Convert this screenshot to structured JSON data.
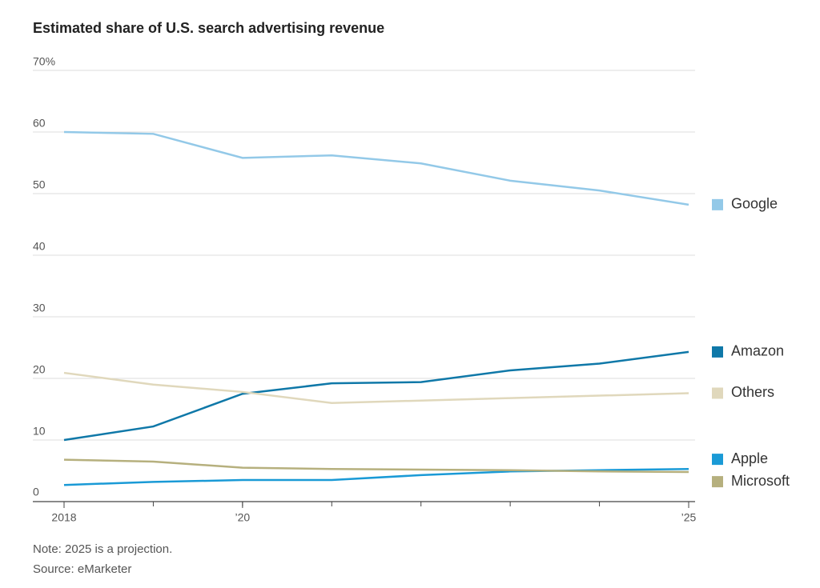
{
  "chart_data": {
    "type": "line",
    "title": "Estimated share of U.S. search advertising revenue",
    "note": "Note: 2025 is a projection.",
    "source": "Source: eMarketer",
    "x": [
      2018,
      2019,
      2020,
      2021,
      2022,
      2023,
      2024,
      2025
    ],
    "xlim": [
      2018,
      2025
    ],
    "xticks": [
      2018,
      {
        "value": 2020,
        "label": "’20"
      },
      {
        "value": 2025,
        "label": "’25"
      }
    ],
    "ylim": [
      0,
      70
    ],
    "yticks": [
      0,
      10,
      20,
      30,
      40,
      50,
      60,
      {
        "value": 70,
        "label": "70%"
      }
    ],
    "grid": true,
    "series": [
      {
        "name": "Google",
        "color": "#93c9e8",
        "values": [
          60.0,
          59.7,
          55.8,
          56.2,
          54.9,
          52.1,
          50.5,
          48.2
        ]
      },
      {
        "name": "Amazon",
        "color": "#0f78a8",
        "values": [
          10.0,
          12.2,
          17.5,
          19.2,
          19.4,
          21.3,
          22.4,
          24.3
        ]
      },
      {
        "name": "Others",
        "color": "#e0d8bc",
        "values": [
          20.9,
          19.0,
          17.8,
          16.0,
          16.4,
          16.8,
          17.2,
          17.6
        ]
      },
      {
        "name": "Apple",
        "color": "#1a9ad6",
        "values": [
          2.7,
          3.2,
          3.5,
          3.5,
          4.3,
          4.9,
          5.1,
          5.3
        ]
      },
      {
        "name": "Microsoft",
        "color": "#b6b07e",
        "values": [
          6.8,
          6.5,
          5.5,
          5.3,
          5.2,
          5.1,
          4.9,
          4.8
        ]
      }
    ]
  }
}
